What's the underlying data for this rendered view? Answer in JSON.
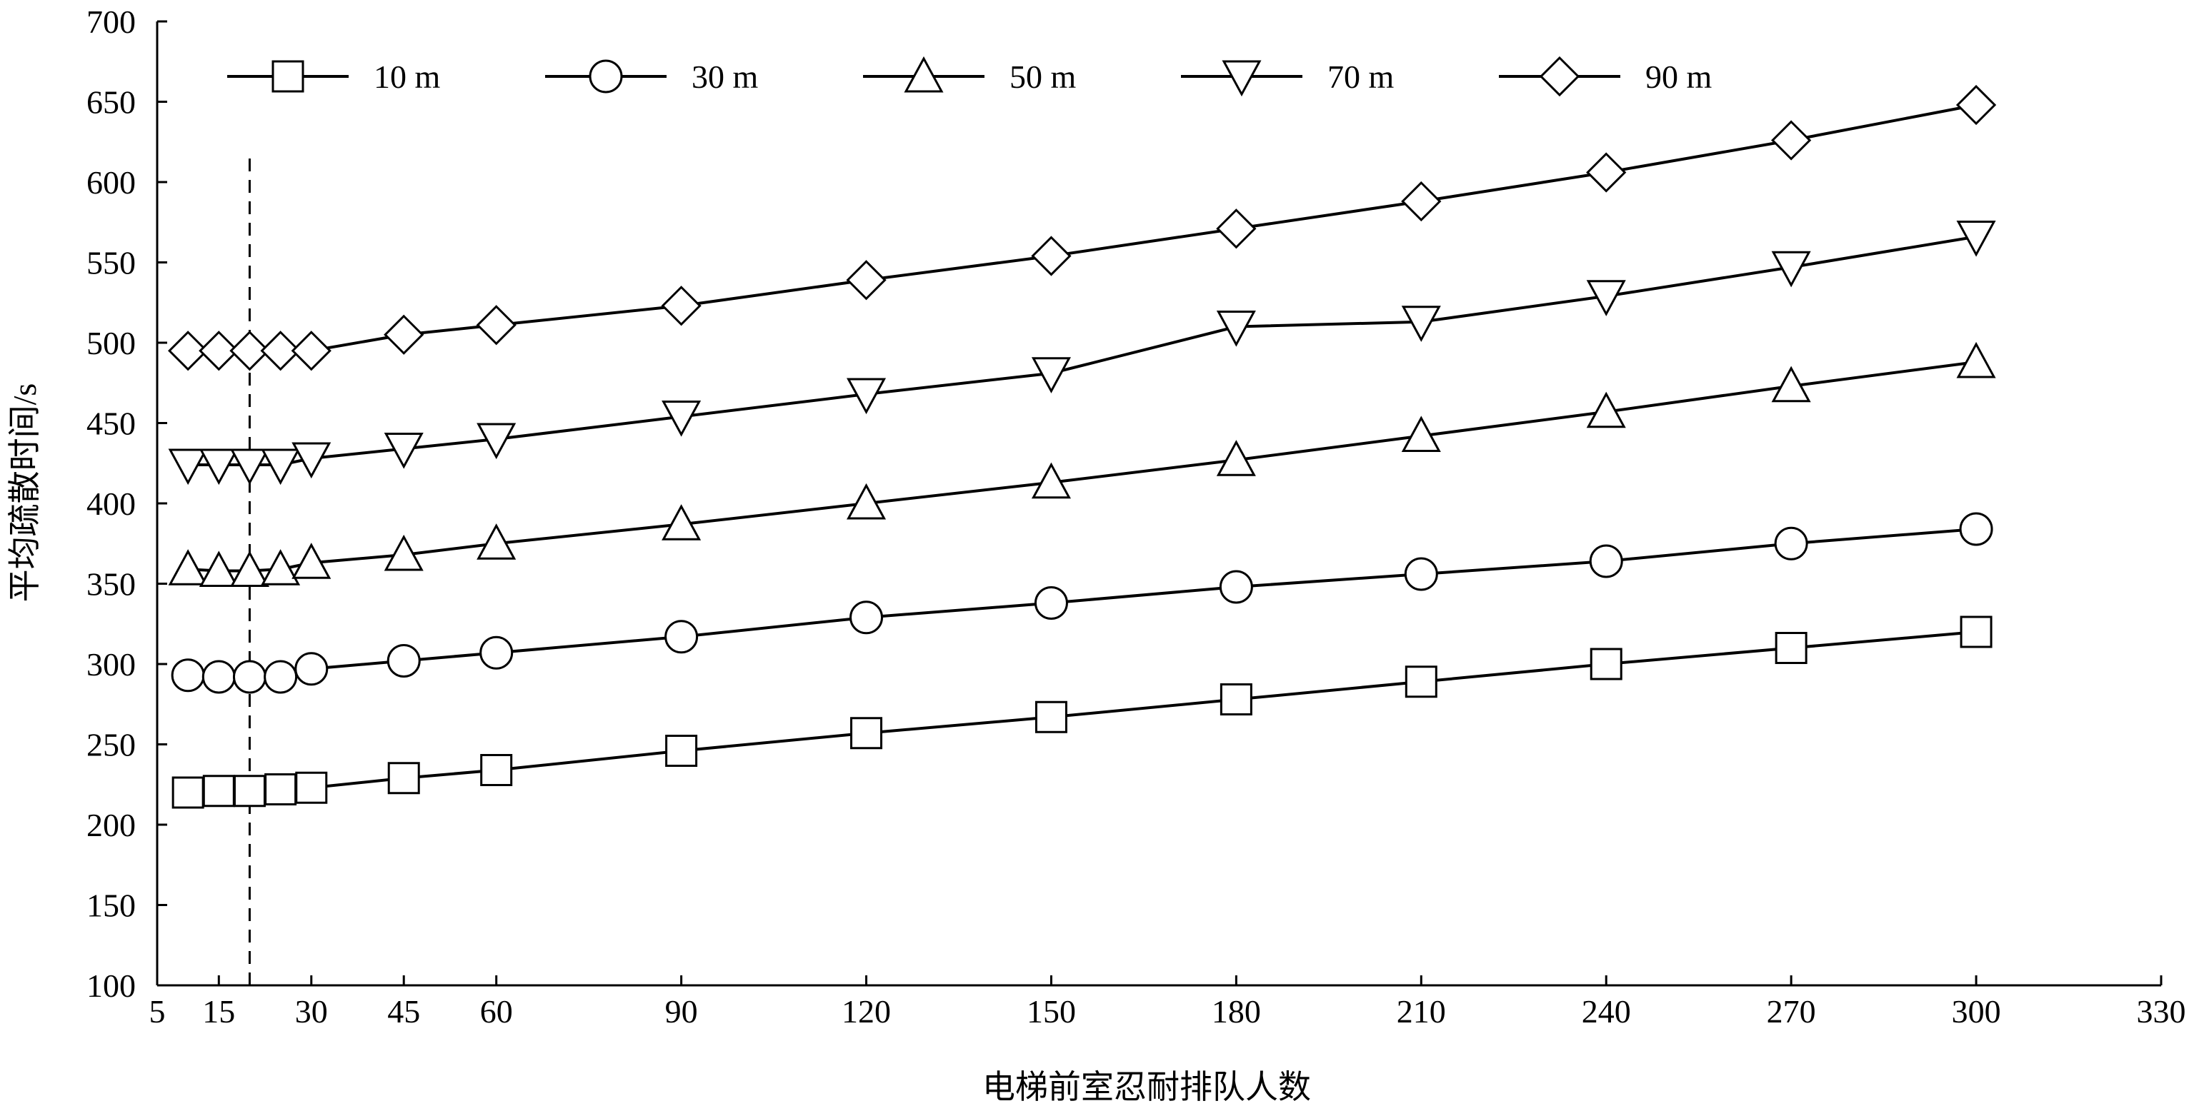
{
  "chart_data": {
    "type": "line",
    "title": "",
    "xlabel": "电梯前室忍耐排队人数",
    "ylabel": "平均疏散时间/s",
    "xlim": [
      5,
      330
    ],
    "ylim": [
      100,
      700
    ],
    "xticks": [
      5,
      15,
      30,
      45,
      60,
      90,
      120,
      150,
      180,
      210,
      240,
      270,
      300,
      330
    ],
    "xtick_labels": [
      "5",
      "15",
      "30",
      "45",
      "60",
      "90",
      "120",
      "150",
      "180",
      "210",
      "240",
      "270",
      "300",
      "330"
    ],
    "yticks": [
      100,
      150,
      200,
      250,
      300,
      350,
      400,
      450,
      500,
      550,
      600,
      650,
      700
    ],
    "ytick_labels": [
      "100",
      "150",
      "200",
      "250",
      "300",
      "350",
      "400",
      "450",
      "500",
      "550",
      "600",
      "650",
      "700"
    ],
    "reference_line_x": 20,
    "legend_position": "top",
    "grid": false,
    "x": [
      10,
      15,
      20,
      25,
      30,
      45,
      60,
      90,
      120,
      150,
      180,
      210,
      240,
      270,
      300
    ],
    "series": [
      {
        "name": "10 m",
        "marker": "square",
        "values": [
          220,
          221,
          221,
          222,
          223,
          229,
          234,
          246,
          257,
          267,
          278,
          289,
          300,
          310,
          320
        ]
      },
      {
        "name": "30 m",
        "marker": "circle",
        "values": [
          293,
          292,
          292,
          292,
          297,
          302,
          307,
          317,
          329,
          338,
          348,
          356,
          364,
          375,
          384
        ]
      },
      {
        "name": "50 m",
        "marker": "triangle-up",
        "values": [
          359,
          358,
          358,
          359,
          363,
          368,
          375,
          387,
          400,
          413,
          427,
          442,
          457,
          473,
          488
        ]
      },
      {
        "name": "70 m",
        "marker": "triangle-down",
        "values": [
          424,
          424,
          424,
          424,
          428,
          434,
          440,
          454,
          468,
          481,
          510,
          513,
          529,
          547,
          566
        ]
      },
      {
        "name": "90 m",
        "marker": "diamond",
        "values": [
          495,
          495,
          495,
          495,
          495,
          505,
          511,
          523,
          539,
          554,
          571,
          588,
          606,
          626,
          648
        ]
      }
    ]
  }
}
